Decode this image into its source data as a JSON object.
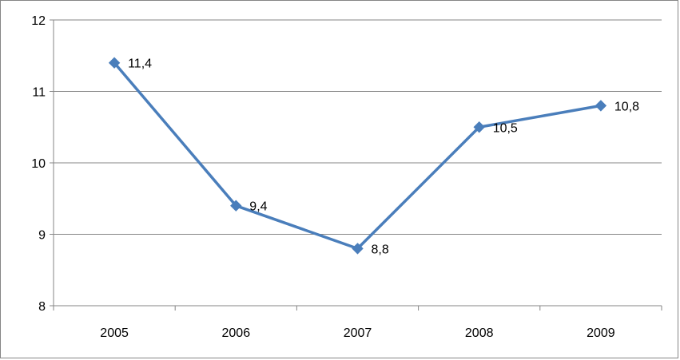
{
  "chart_data": {
    "type": "line",
    "categories": [
      "2005",
      "2006",
      "2007",
      "2008",
      "2009"
    ],
    "series": [
      {
        "values": [
          11.4,
          9.4,
          8.8,
          10.5,
          10.8
        ],
        "labels": [
          "11,4",
          "9,4",
          "8,8",
          "10,5",
          "10,8"
        ],
        "color": "#4a7ebb",
        "marker": "diamond"
      }
    ],
    "yticks": [
      "8",
      "9",
      "10",
      "11",
      "12"
    ],
    "ylim": [
      8,
      12
    ],
    "grid": true,
    "legend": "none"
  }
}
